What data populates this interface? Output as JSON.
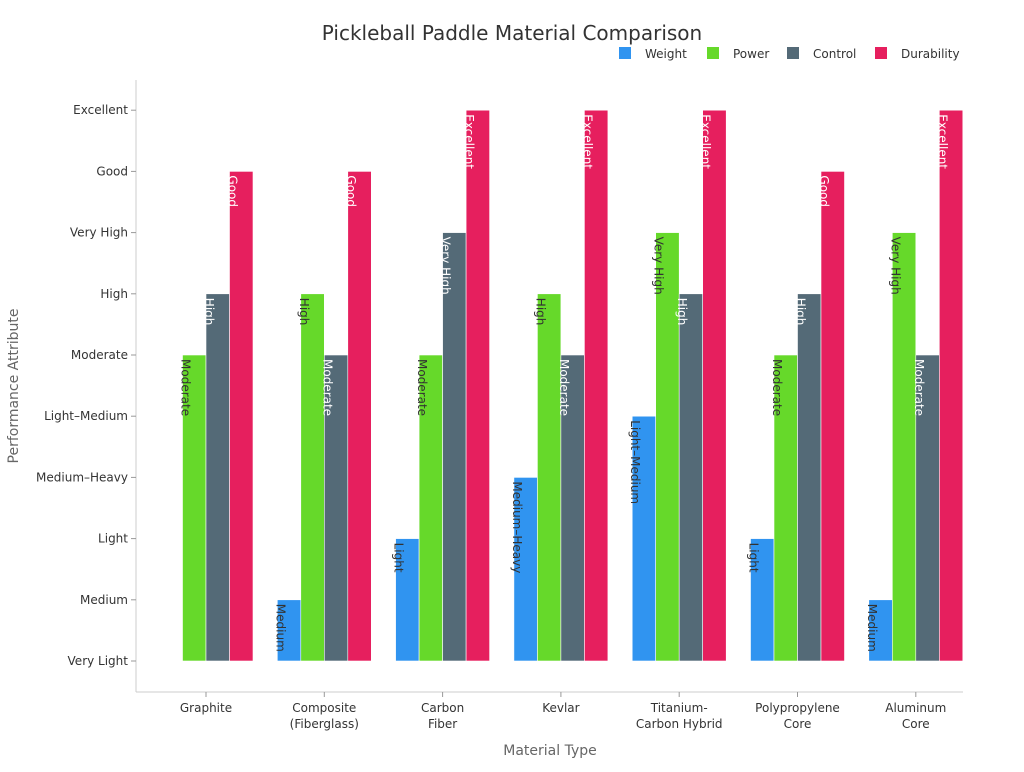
{
  "chart_data": {
    "type": "bar",
    "title": "Pickleball Paddle Material Comparison",
    "xlabel": "Material Type",
    "ylabel": "Performance Attribute",
    "y_levels": [
      "Very Light",
      "Medium",
      "Light",
      "Medium–Heavy",
      "Light–Medium",
      "Moderate",
      "High",
      "Very High",
      "Good",
      "Excellent"
    ],
    "categories": [
      [
        "Graphite"
      ],
      [
        "Composite",
        "(Fiberglass)"
      ],
      [
        "Carbon",
        "Fiber"
      ],
      [
        "Kevlar"
      ],
      [
        "Titanium-",
        "Carbon Hybrid"
      ],
      [
        "Polypropylene",
        "Core"
      ],
      [
        "Aluminum",
        "Core"
      ]
    ],
    "series": [
      {
        "name": "Weight",
        "color": "#3094f0",
        "values": [
          "Very Light",
          "Medium",
          "Light",
          "Medium–Heavy",
          "Light–Medium",
          "Light",
          "Medium"
        ]
      },
      {
        "name": "Power",
        "color": "#66d92a",
        "values": [
          "Moderate",
          "High",
          "Moderate",
          "High",
          "Very High",
          "Moderate",
          "Very High"
        ]
      },
      {
        "name": "Control",
        "color": "#546a77",
        "values": [
          "High",
          "Moderate",
          "Very High",
          "Moderate",
          "High",
          "High",
          "Moderate"
        ]
      },
      {
        "name": "Durability",
        "color": "#e61f5e",
        "values": [
          "Good",
          "Good",
          "Excellent",
          "Excellent",
          "Excellent",
          "Good",
          "Excellent"
        ]
      }
    ],
    "legend_position": "top-right",
    "grid": false
  }
}
